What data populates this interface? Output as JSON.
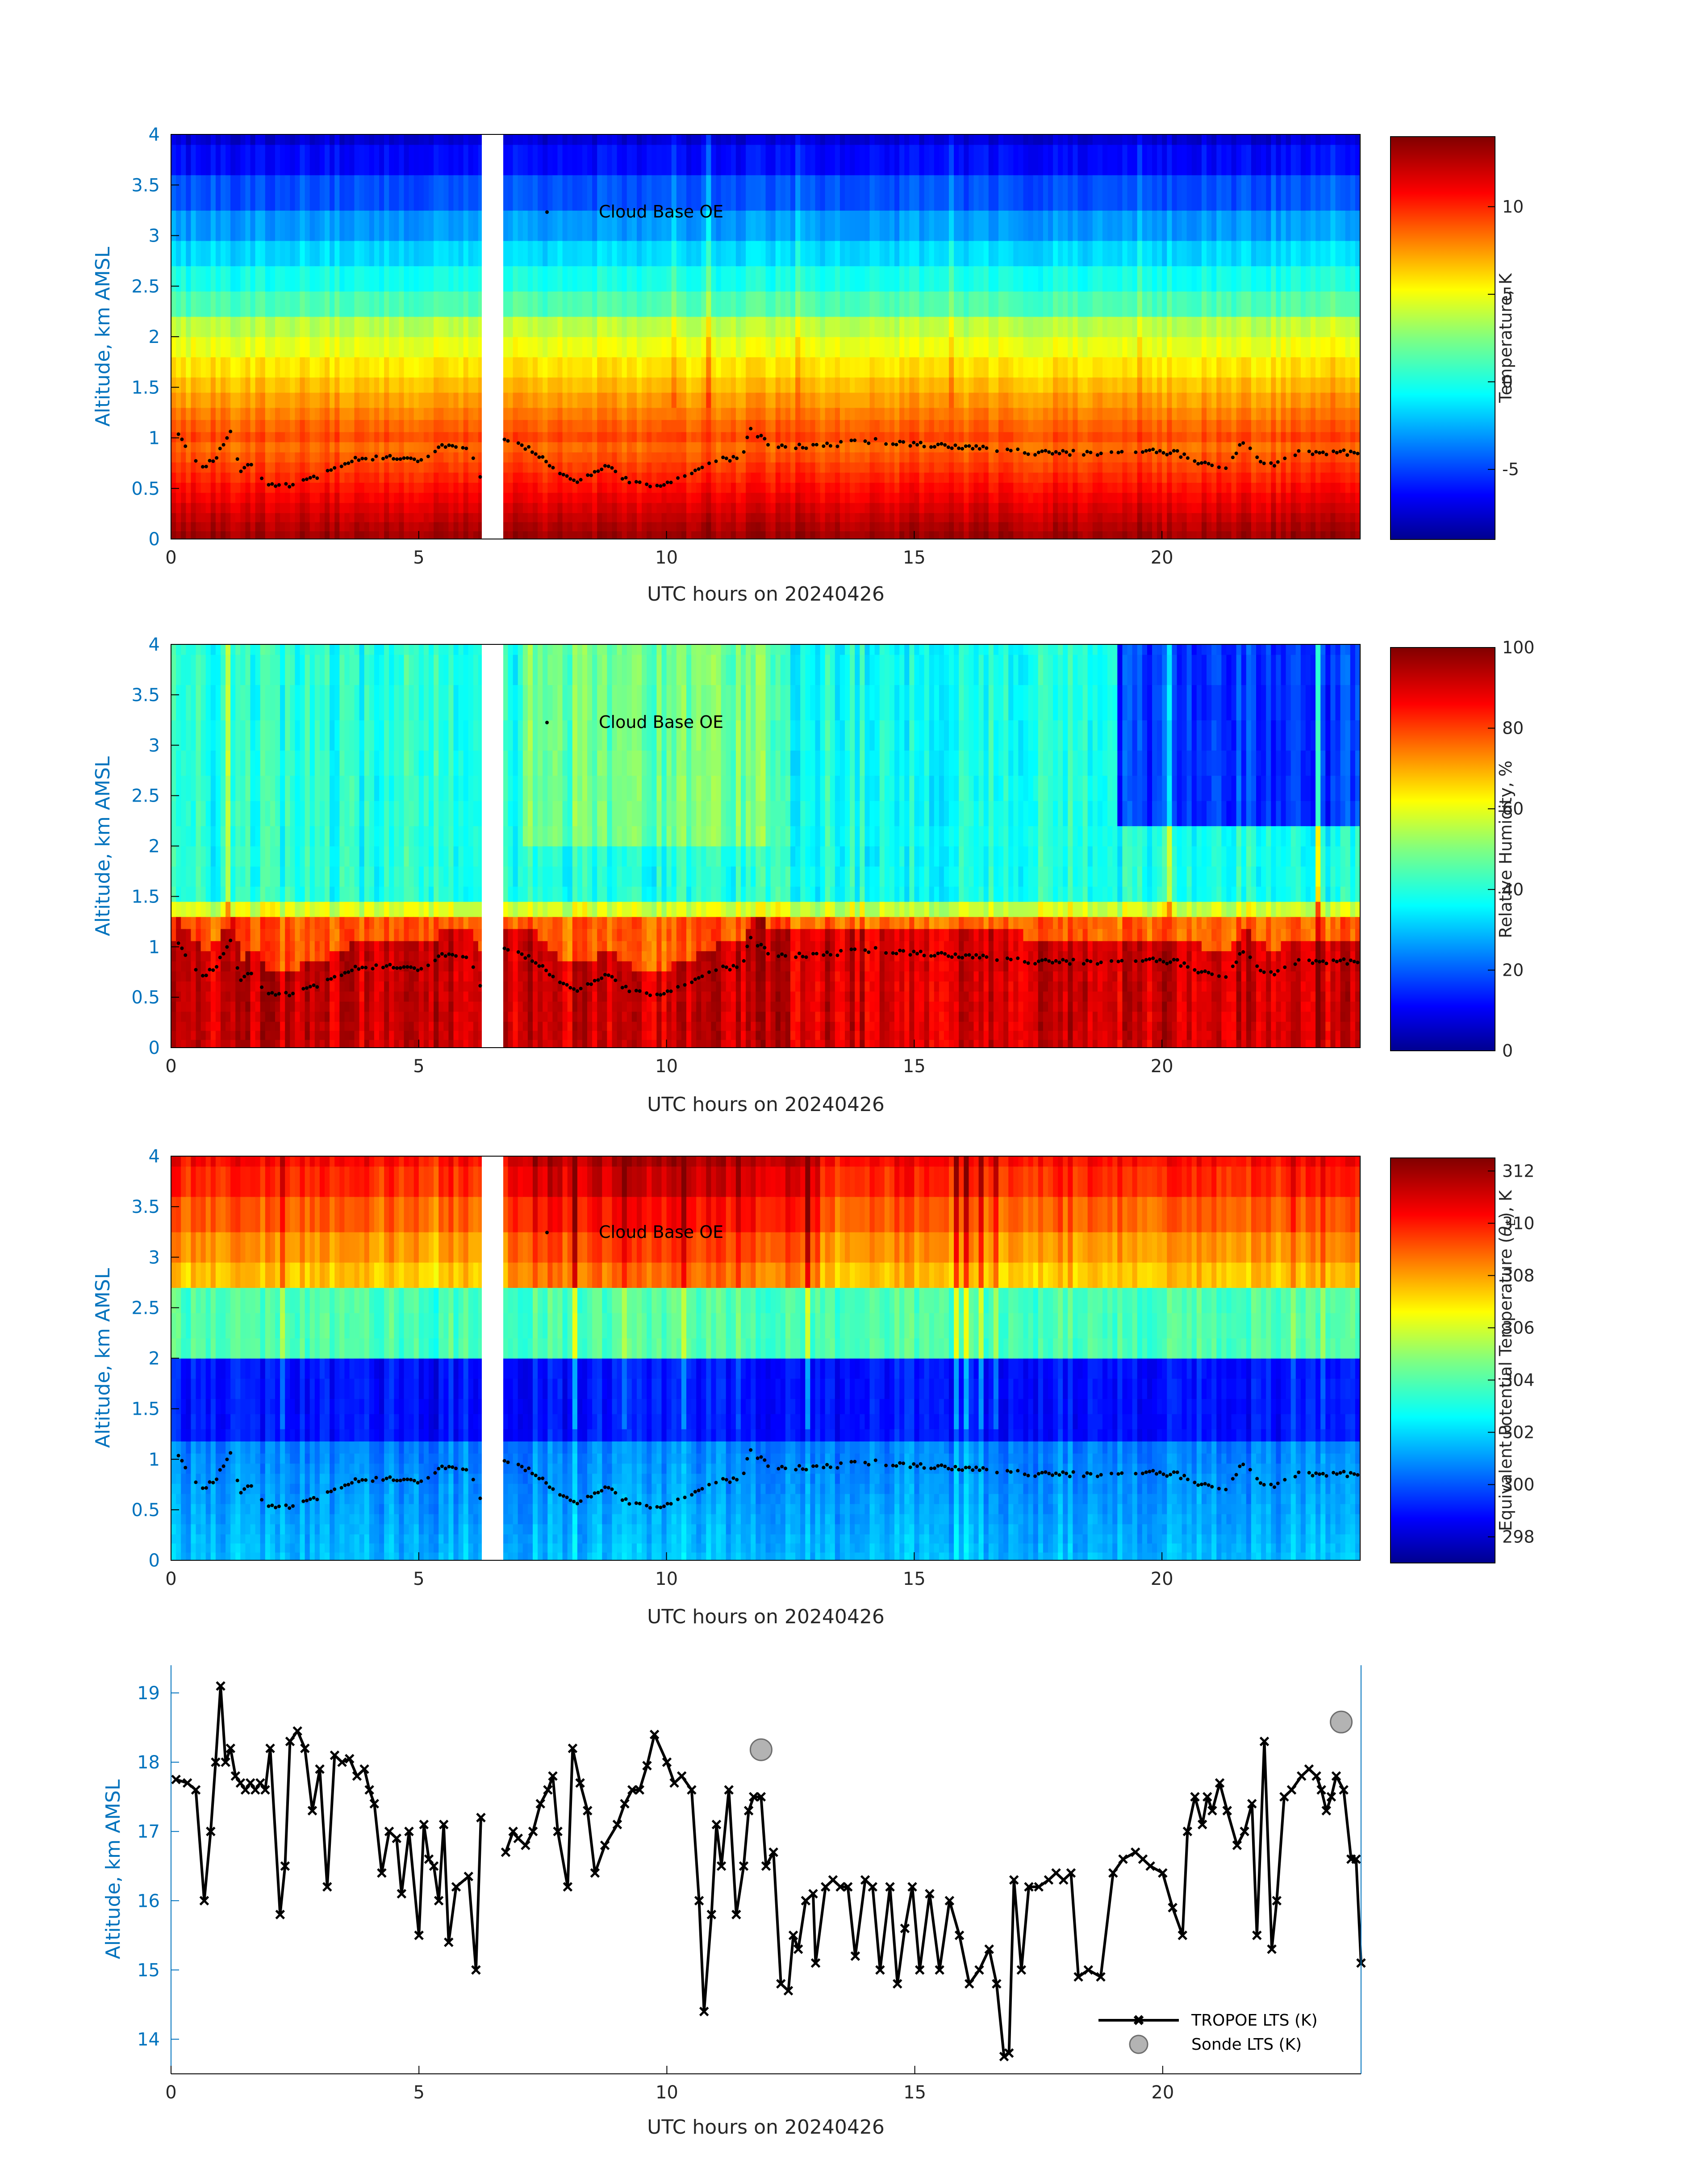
{
  "xlabel": "UTC hours on 20240426",
  "panels": [
    {
      "ylabel": "Altitude, km AMSL",
      "colorbar_label": "Temperature, K",
      "annotation": "Cloud Base OE",
      "colorbar_ticks": [
        "10",
        "5",
        "0",
        "-5"
      ]
    },
    {
      "ylabel": "Altitude, km AMSL",
      "colorbar_label": "Relative Humidity, %",
      "annotation": "Cloud Base OE",
      "colorbar_ticks": [
        "100",
        "80",
        "60",
        "40",
        "20",
        "0"
      ]
    },
    {
      "ylabel": "Altitude, km AMSL",
      "colorbar_label_pre": "Equivalent Potential Temperature (",
      "colorbar_label_sym": "θ",
      "colorbar_label_sub": "E",
      "colorbar_label_post": "), K",
      "annotation": "Cloud Base OE",
      "colorbar_ticks": [
        "312",
        "310",
        "308",
        "306",
        "304",
        "302",
        "300",
        "298"
      ]
    },
    {
      "ylabel": "Altitude, km AMSL",
      "legend": [
        "TROPOE LTS (K)",
        "Sonde LTS (K)"
      ]
    }
  ],
  "chart_data": [
    {
      "type": "heatmap",
      "title": "",
      "xlabel": "UTC hours on 20240426",
      "ylabel": "Altitude, km AMSL",
      "xlim": [
        0,
        24
      ],
      "ylim": [
        0,
        4
      ],
      "x_ticks": [
        "0",
        "5",
        "10",
        "15",
        "20"
      ],
      "y_ticks": [
        "0",
        "0.5",
        "1",
        "1.5",
        "2",
        "2.5",
        "3",
        "3.5",
        "4"
      ],
      "colorbar": {
        "label": "Temperature, K",
        "range": [
          -9,
          14
        ],
        "ticks": [
          -5,
          0,
          5,
          10
        ],
        "colormap": "jet"
      },
      "data_gap_hours": [
        6.25,
        6.7
      ],
      "series": [
        {
          "name": "Cloud Base OE",
          "marker": "dot",
          "color": "#000000"
        }
      ]
    },
    {
      "type": "heatmap",
      "title": "",
      "xlabel": "UTC hours on 20240426",
      "ylabel": "Altitude, km AMSL",
      "xlim": [
        0,
        24
      ],
      "ylim": [
        0,
        4
      ],
      "x_ticks": [
        "0",
        "5",
        "10",
        "15",
        "20"
      ],
      "y_ticks": [
        "0",
        "0.5",
        "1",
        "1.5",
        "2",
        "2.5",
        "3",
        "3.5",
        "4"
      ],
      "colorbar": {
        "label": "Relative Humidity, %",
        "range": [
          0,
          100
        ],
        "ticks": [
          0,
          20,
          40,
          60,
          80,
          100
        ],
        "colormap": "jet"
      },
      "data_gap_hours": [
        6.25,
        6.7
      ],
      "series": [
        {
          "name": "Cloud Base OE",
          "marker": "dot",
          "color": "#000000"
        }
      ]
    },
    {
      "type": "heatmap",
      "title": "",
      "xlabel": "UTC hours on 20240426",
      "ylabel": "Altitude, km AMSL",
      "xlim": [
        0,
        24
      ],
      "ylim": [
        0,
        4
      ],
      "x_ticks": [
        "0",
        "5",
        "10",
        "15",
        "20"
      ],
      "y_ticks": [
        "0",
        "0.5",
        "1",
        "1.5",
        "2",
        "2.5",
        "3",
        "3.5",
        "4"
      ],
      "colorbar": {
        "label": "Equivalent Potential Temperature (θE), K",
        "range": [
          297,
          312.5
        ],
        "ticks": [
          298,
          300,
          302,
          304,
          306,
          308,
          310,
          312
        ],
        "colormap": "jet"
      },
      "data_gap_hours": [
        6.25,
        6.7
      ],
      "series": [
        {
          "name": "Cloud Base OE",
          "marker": "dot",
          "color": "#000000"
        }
      ]
    },
    {
      "type": "line",
      "title": "",
      "xlabel": "UTC hours on 20240426",
      "ylabel": "Altitude, km AMSL",
      "xlim": [
        0,
        24
      ],
      "ylim": [
        13.5,
        19.4
      ],
      "x_ticks": [
        "0",
        "5",
        "10",
        "15",
        "20"
      ],
      "y_ticks": [
        "14",
        "15",
        "16",
        "17",
        "18",
        "19"
      ],
      "legend_position": "bottom-right",
      "series": [
        {
          "name": "TROPOE LTS (K)",
          "style": "line with x markers",
          "color": "#000000",
          "x": [
            0.1,
            0.33,
            0.5,
            0.67,
            0.8,
            0.9,
            1.0,
            1.1,
            1.2,
            1.3,
            1.4,
            1.5,
            1.6,
            1.7,
            1.8,
            1.9,
            2.0,
            2.2,
            2.3,
            2.4,
            2.55,
            2.7,
            2.85,
            3.0,
            3.15,
            3.3,
            3.45,
            3.6,
            3.75,
            3.9,
            4.0,
            4.1,
            4.25,
            4.4,
            4.55,
            4.65,
            4.8,
            5.0,
            5.1,
            5.2,
            5.3,
            5.4,
            5.5,
            5.6,
            5.75,
            6.0,
            6.15,
            6.25,
            6.75,
            6.9,
            7.0,
            7.15,
            7.3,
            7.45,
            7.6,
            7.7,
            7.8,
            8.0,
            8.1,
            8.25,
            8.4,
            8.55,
            8.75,
            9.0,
            9.15,
            9.3,
            9.45,
            9.6,
            9.75,
            10.0,
            10.15,
            10.3,
            10.5,
            10.65,
            10.75,
            10.9,
            11.0,
            11.1,
            11.25,
            11.4,
            11.55,
            11.65,
            11.75,
            11.9,
            12.0,
            12.15,
            12.3,
            12.45,
            12.55,
            12.65,
            12.8,
            12.95,
            13.0,
            13.2,
            13.35,
            13.5,
            13.65,
            13.8,
            14.0,
            14.15,
            14.3,
            14.5,
            14.65,
            14.8,
            14.95,
            15.1,
            15.3,
            15.5,
            15.7,
            15.9,
            16.1,
            16.3,
            16.5,
            16.65,
            16.8,
            16.9,
            17.0,
            17.15,
            17.3,
            17.5,
            17.7,
            17.85,
            18.0,
            18.15,
            18.3,
            18.5,
            18.75,
            19.0,
            19.2,
            19.45,
            19.6,
            19.75,
            20.0,
            20.2,
            20.4,
            20.5,
            20.65,
            20.8,
            20.9,
            21.0,
            21.15,
            21.3,
            21.5,
            21.65,
            21.8,
            21.9,
            22.05,
            22.2,
            22.3,
            22.45,
            22.6,
            22.8,
            22.95,
            23.1,
            23.2,
            23.3,
            23.4,
            23.5,
            23.65,
            23.8,
            23.9,
            24.0
          ],
          "y": [
            17.75,
            17.7,
            17.6,
            16.0,
            17.0,
            18.0,
            19.1,
            18.0,
            18.2,
            17.8,
            17.7,
            17.6,
            17.7,
            17.6,
            17.7,
            17.6,
            18.2,
            15.8,
            16.5,
            18.3,
            18.45,
            18.2,
            17.3,
            17.9,
            16.2,
            18.1,
            18.0,
            18.05,
            17.8,
            17.9,
            17.6,
            17.4,
            16.4,
            17.0,
            16.9,
            16.1,
            17.0,
            15.5,
            17.1,
            16.6,
            16.5,
            16.0,
            17.1,
            15.4,
            16.2,
            16.35,
            15.0,
            17.2,
            16.7,
            17.0,
            16.9,
            16.8,
            17.0,
            17.4,
            17.6,
            17.8,
            17.0,
            16.2,
            18.2,
            17.7,
            17.3,
            16.4,
            16.8,
            17.1,
            17.4,
            17.6,
            17.6,
            17.95,
            18.4,
            18.0,
            17.7,
            17.8,
            17.6,
            16.0,
            14.4,
            15.8,
            17.1,
            16.5,
            17.6,
            15.8,
            16.5,
            17.3,
            17.5,
            17.5,
            16.5,
            16.7,
            14.8,
            14.7,
            15.5,
            15.3,
            16.0,
            16.1,
            15.1,
            16.2,
            16.3,
            16.2,
            16.2,
            15.2,
            16.3,
            16.2,
            15.0,
            16.2,
            14.8,
            15.6,
            16.2,
            15.0,
            16.1,
            15.0,
            16.0,
            15.5,
            14.8,
            15.0,
            15.3,
            14.8,
            13.75,
            13.8,
            16.3,
            15.0,
            16.2,
            16.2,
            16.3,
            16.4,
            16.3,
            16.4,
            14.9,
            15.0,
            14.9,
            16.4,
            16.6,
            16.7,
            16.6,
            16.5,
            16.4,
            15.9,
            15.5,
            17.0,
            17.5,
            17.1,
            17.5,
            17.3,
            17.7,
            17.3,
            16.8,
            17.0,
            17.4,
            15.5,
            18.3,
            15.3,
            16.0,
            17.5,
            17.6,
            17.8,
            17.9,
            17.8,
            17.6,
            17.3,
            17.5,
            17.8,
            17.6,
            16.6,
            16.6,
            15.1
          ]
        },
        {
          "name": "Sonde LTS (K)",
          "style": "circle markers",
          "color": "#b3b3b3",
          "x": [
            11.9,
            23.6
          ],
          "y": [
            18.18,
            18.58
          ]
        }
      ]
    }
  ]
}
